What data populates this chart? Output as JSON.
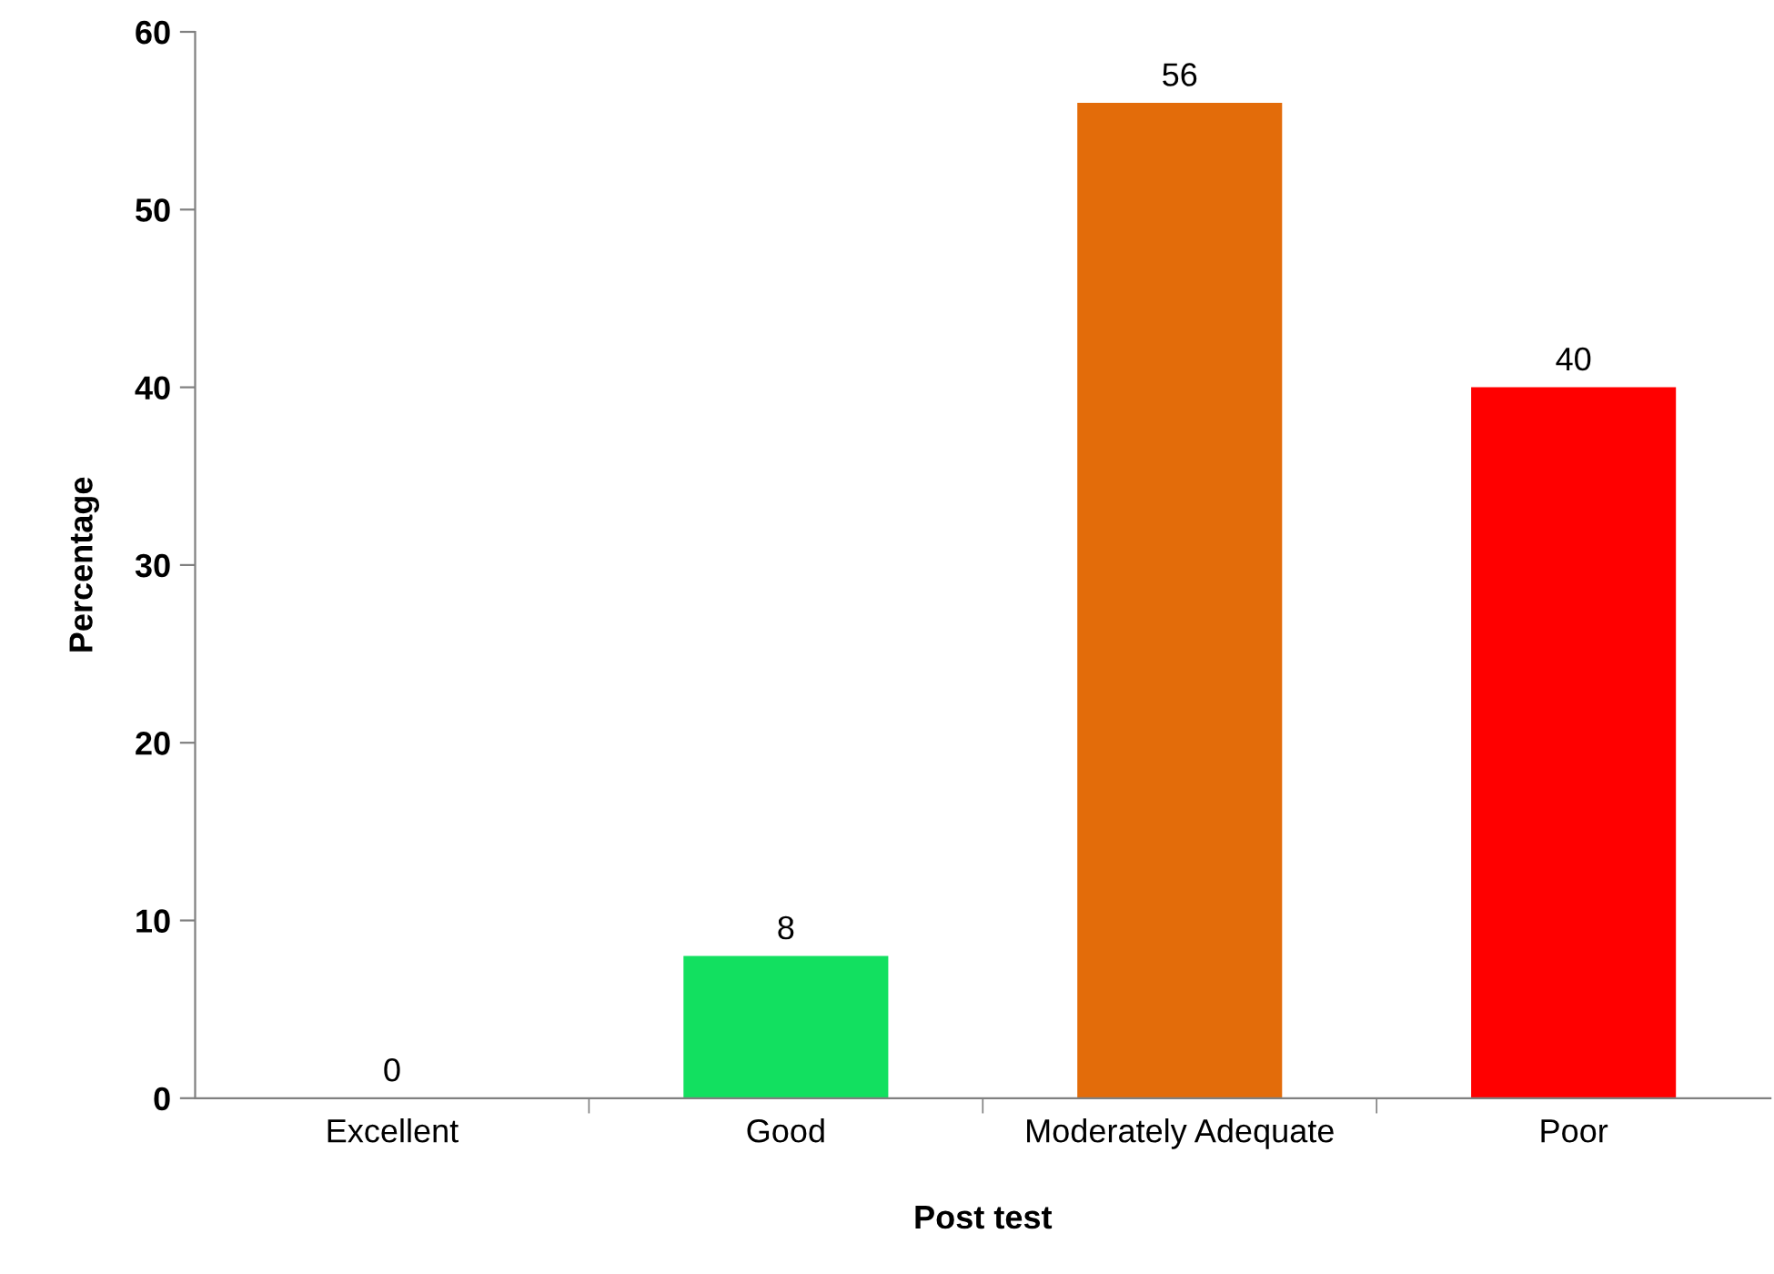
{
  "chart_data": {
    "type": "bar",
    "xlabel": "Post test",
    "ylabel": "Percentage",
    "categories": [
      "Excellent",
      "Good",
      "Moderately Adequate",
      "Poor"
    ],
    "values": [
      0,
      8,
      56,
      40
    ],
    "colors": [
      "#4472c4",
      "#12e060",
      "#e36c0a",
      "#ff0000"
    ],
    "ylim": [
      0,
      60
    ],
    "yticks": [
      0,
      10,
      20,
      30,
      40,
      50,
      60
    ],
    "grid": false,
    "data_labels": true
  }
}
